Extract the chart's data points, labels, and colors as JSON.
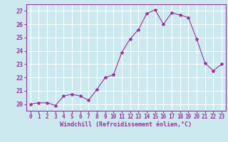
{
  "x": [
    0,
    1,
    2,
    3,
    4,
    5,
    6,
    7,
    8,
    9,
    10,
    11,
    12,
    13,
    14,
    15,
    16,
    17,
    18,
    19,
    20,
    21,
    22,
    23
  ],
  "y": [
    20.0,
    20.1,
    20.1,
    19.9,
    20.6,
    20.75,
    20.6,
    20.3,
    21.1,
    22.0,
    22.2,
    23.9,
    24.9,
    25.6,
    26.8,
    27.1,
    26.0,
    26.85,
    26.7,
    26.5,
    24.9,
    23.1,
    22.5,
    23.0
  ],
  "line_color": "#993399",
  "marker": "*",
  "marker_size": 3,
  "bg_color": "#cce9f0",
  "grid_color": "#ffffff",
  "xlabel": "Windchill (Refroidissement éolien,°C)",
  "xlabel_color": "#993399",
  "tick_color": "#993399",
  "ylabel_ticks": [
    20,
    21,
    22,
    23,
    24,
    25,
    26,
    27
  ],
  "xlim": [
    -0.5,
    23.5
  ],
  "ylim": [
    19.5,
    27.5
  ],
  "xticks": [
    0,
    1,
    2,
    3,
    4,
    5,
    6,
    7,
    8,
    9,
    10,
    11,
    12,
    13,
    14,
    15,
    16,
    17,
    18,
    19,
    20,
    21,
    22,
    23
  ],
  "spine_color": "#993399",
  "linewidth": 0.8,
  "xlabel_fontsize": 6.0,
  "tick_fontsize": 5.5,
  "ytick_fontsize": 6.0
}
